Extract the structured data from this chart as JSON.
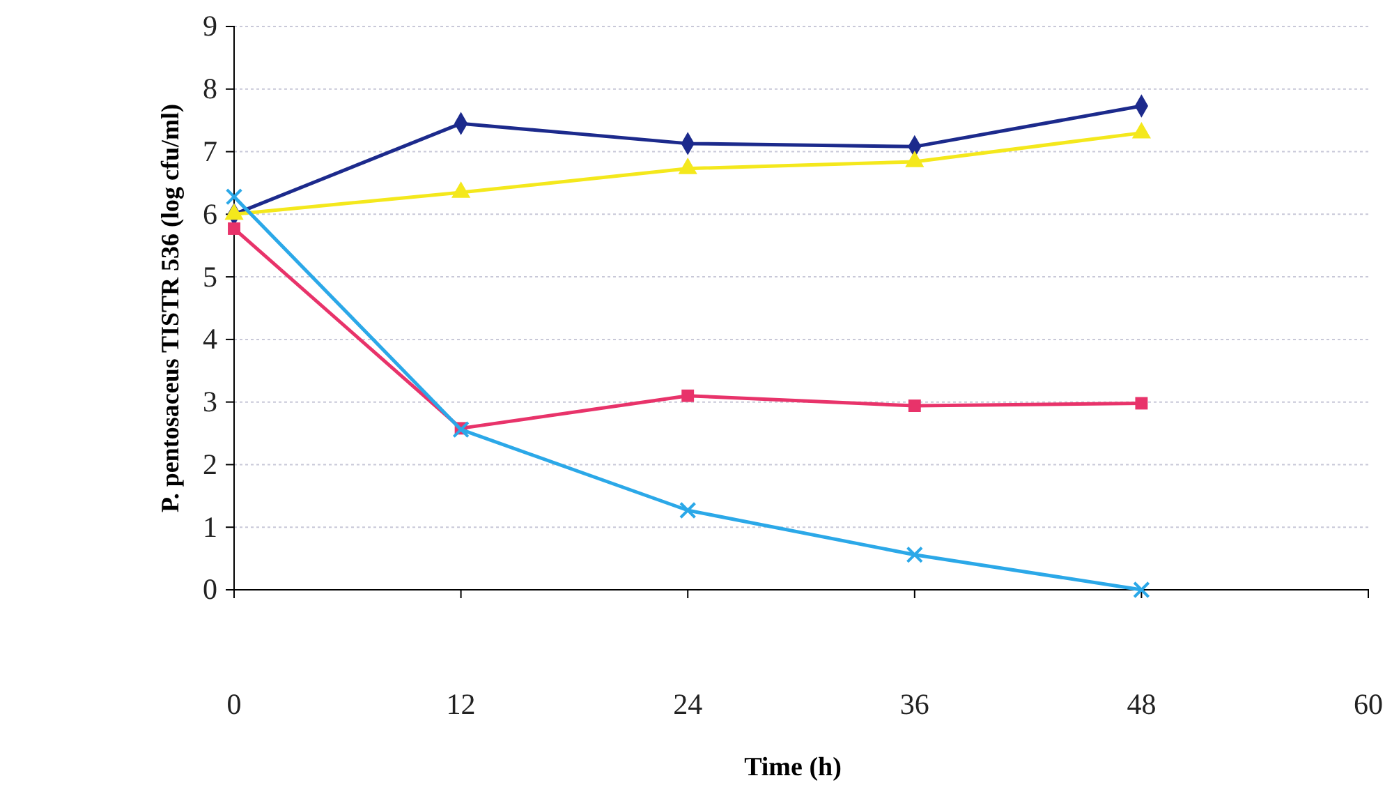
{
  "chart_data": {
    "type": "line",
    "xlabel": "Time (h)",
    "ylabel": "P. pentosaceus TISTR 536  (log cfu/ml)",
    "x": [
      0,
      12,
      24,
      36,
      48
    ],
    "xlim": [
      0,
      60
    ],
    "xticks": [
      0,
      12,
      24,
      36,
      48,
      60
    ],
    "ylim": [
      0,
      9
    ],
    "yticks": [
      0,
      1,
      2,
      3,
      4,
      5,
      6,
      7,
      8,
      9
    ],
    "grid": "y",
    "series": [
      {
        "color": "#1c2a8c",
        "marker": "diamond",
        "values": [
          6.0,
          7.45,
          7.13,
          7.08,
          7.73
        ]
      },
      {
        "color": "#f4e81c",
        "marker": "triangle",
        "values": [
          6.0,
          6.35,
          6.73,
          6.84,
          7.3
        ]
      },
      {
        "color": "#e8336a",
        "marker": "square",
        "values": [
          5.77,
          2.58,
          3.1,
          2.94,
          2.98
        ]
      },
      {
        "color": "#2ba8e8",
        "marker": "cross",
        "values": [
          6.28,
          2.56,
          1.27,
          0.56,
          0
        ]
      }
    ]
  }
}
